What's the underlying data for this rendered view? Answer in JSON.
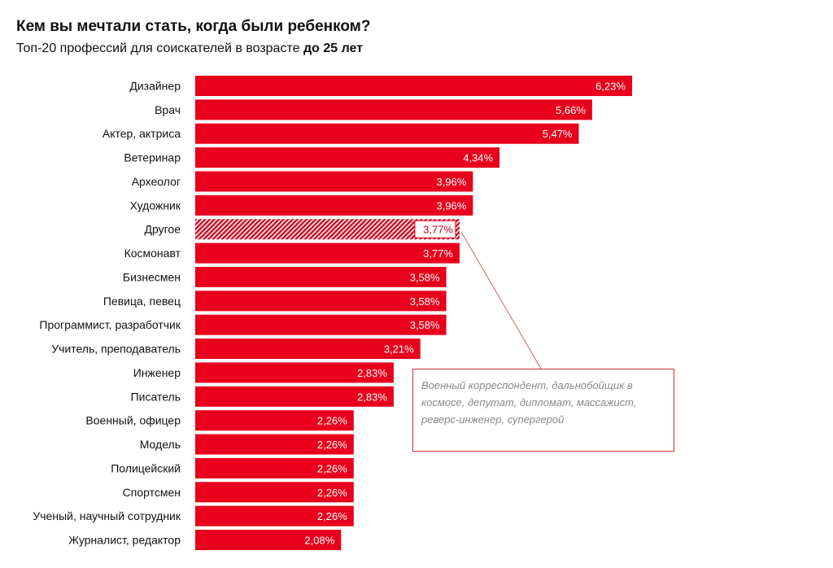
{
  "chart_data": {
    "type": "bar",
    "orientation": "horizontal",
    "title": "Кем вы мечтали стать, когда были ребенком?",
    "subtitle": "Топ-20 профессий для соискателей в возрасте",
    "subtitle_bold": "до 25 лет",
    "categories": [
      "Дизайнер",
      "Врач",
      "Актер, актриса",
      "Ветеринар",
      "Археолог",
      "Художник",
      "Другое",
      "Космонавт",
      "Бизнесмен",
      "Певица, певец",
      "Программист, разработчик",
      "Учитель, преподаватель",
      "Инженер",
      "Писатель",
      "Военный, офицер",
      "Модель",
      "Полицейский",
      "Спортсмен",
      "Ученый, научный сотрудник",
      "Журналист, редактор"
    ],
    "values": [
      6.23,
      5.66,
      5.47,
      4.34,
      3.96,
      3.96,
      3.77,
      3.77,
      3.58,
      3.58,
      3.58,
      3.21,
      2.83,
      2.83,
      2.26,
      2.26,
      2.26,
      2.26,
      2.26,
      2.08
    ],
    "labels": [
      "6,23%",
      "5,66%",
      "5,47%",
      "4,34%",
      "3,96%",
      "3,96%",
      "3,77%",
      "3,77%",
      "3,58%",
      "3,58%",
      "3,58%",
      "3,21%",
      "2,83%",
      "2,83%",
      "2,26%",
      "2,26%",
      "2,26%",
      "2,26%",
      "2,26%",
      "2,08%"
    ],
    "hatched_category": "Другое",
    "annotation": "Военный корреспондент, дальнобойщик в космосе, депутат, дипломат, массажист, реверс-инженер, супергерой",
    "bar_color": "#e8001c",
    "grid": false
  }
}
